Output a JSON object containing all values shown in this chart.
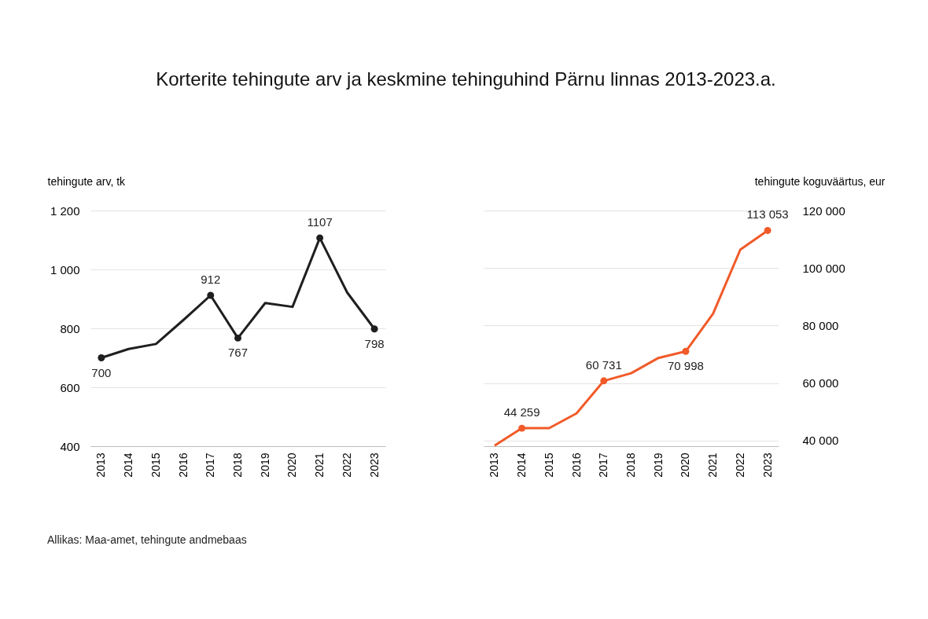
{
  "chart_data": [
    {
      "type": "line",
      "title": "Korterite tehingute arv ja keskmine tehinguhind Pärnu linnas 2013-2023.a.",
      "ylabel": "tehingute arv, tk",
      "categories": [
        "2013",
        "2014",
        "2015",
        "2016",
        "2017",
        "2018",
        "2019",
        "2020",
        "2021",
        "2022",
        "2023"
      ],
      "series": [
        {
          "color": "#1f1f1f",
          "values": [
            700,
            730,
            747,
            828,
            912,
            767,
            886,
            873,
            1107,
            922,
            798
          ],
          "value_labels": [
            "700",
            null,
            null,
            null,
            "912",
            "767",
            null,
            null,
            "1107",
            null,
            "798"
          ]
        }
      ],
      "ylim": [
        400,
        1200
      ],
      "yticks": [
        400,
        600,
        800,
        {
          "value": 1000,
          "label": "1 000"
        },
        {
          "value": 1200,
          "label": "1 200"
        }
      ],
      "grid": "y",
      "line_style": "solid"
    },
    {
      "type": "line",
      "ylabel": "tehingute koguväärtus, eur",
      "categories": [
        "2013",
        "2014",
        "2015",
        "2016",
        "2017",
        "2018",
        "2019",
        "2020",
        "2021",
        "2022",
        "2023"
      ],
      "series": [
        {
          "color": "#f15a29",
          "values": [
            38200,
            44259,
            44300,
            49400,
            60731,
            63400,
            68700,
            70998,
            84100,
            106400,
            113053
          ],
          "value_labels": [
            null,
            "44 259",
            null,
            null,
            "60 731",
            null,
            null,
            "70 998",
            null,
            null,
            "113 053"
          ]
        }
      ],
      "ylim": [
        38000,
        120000
      ],
      "yticks": [
        {
          "value": 40000,
          "label": "40 000"
        },
        {
          "value": 60000,
          "label": "60 000"
        },
        {
          "value": 80000,
          "label": "80 000"
        },
        {
          "value": 100000,
          "label": "100 000"
        },
        {
          "value": 120000,
          "label": "120 000"
        }
      ],
      "grid": "y",
      "line_style": "solid",
      "annotations": [
        "Allikas: Maa-amet, tehingute andmebaas"
      ]
    }
  ]
}
